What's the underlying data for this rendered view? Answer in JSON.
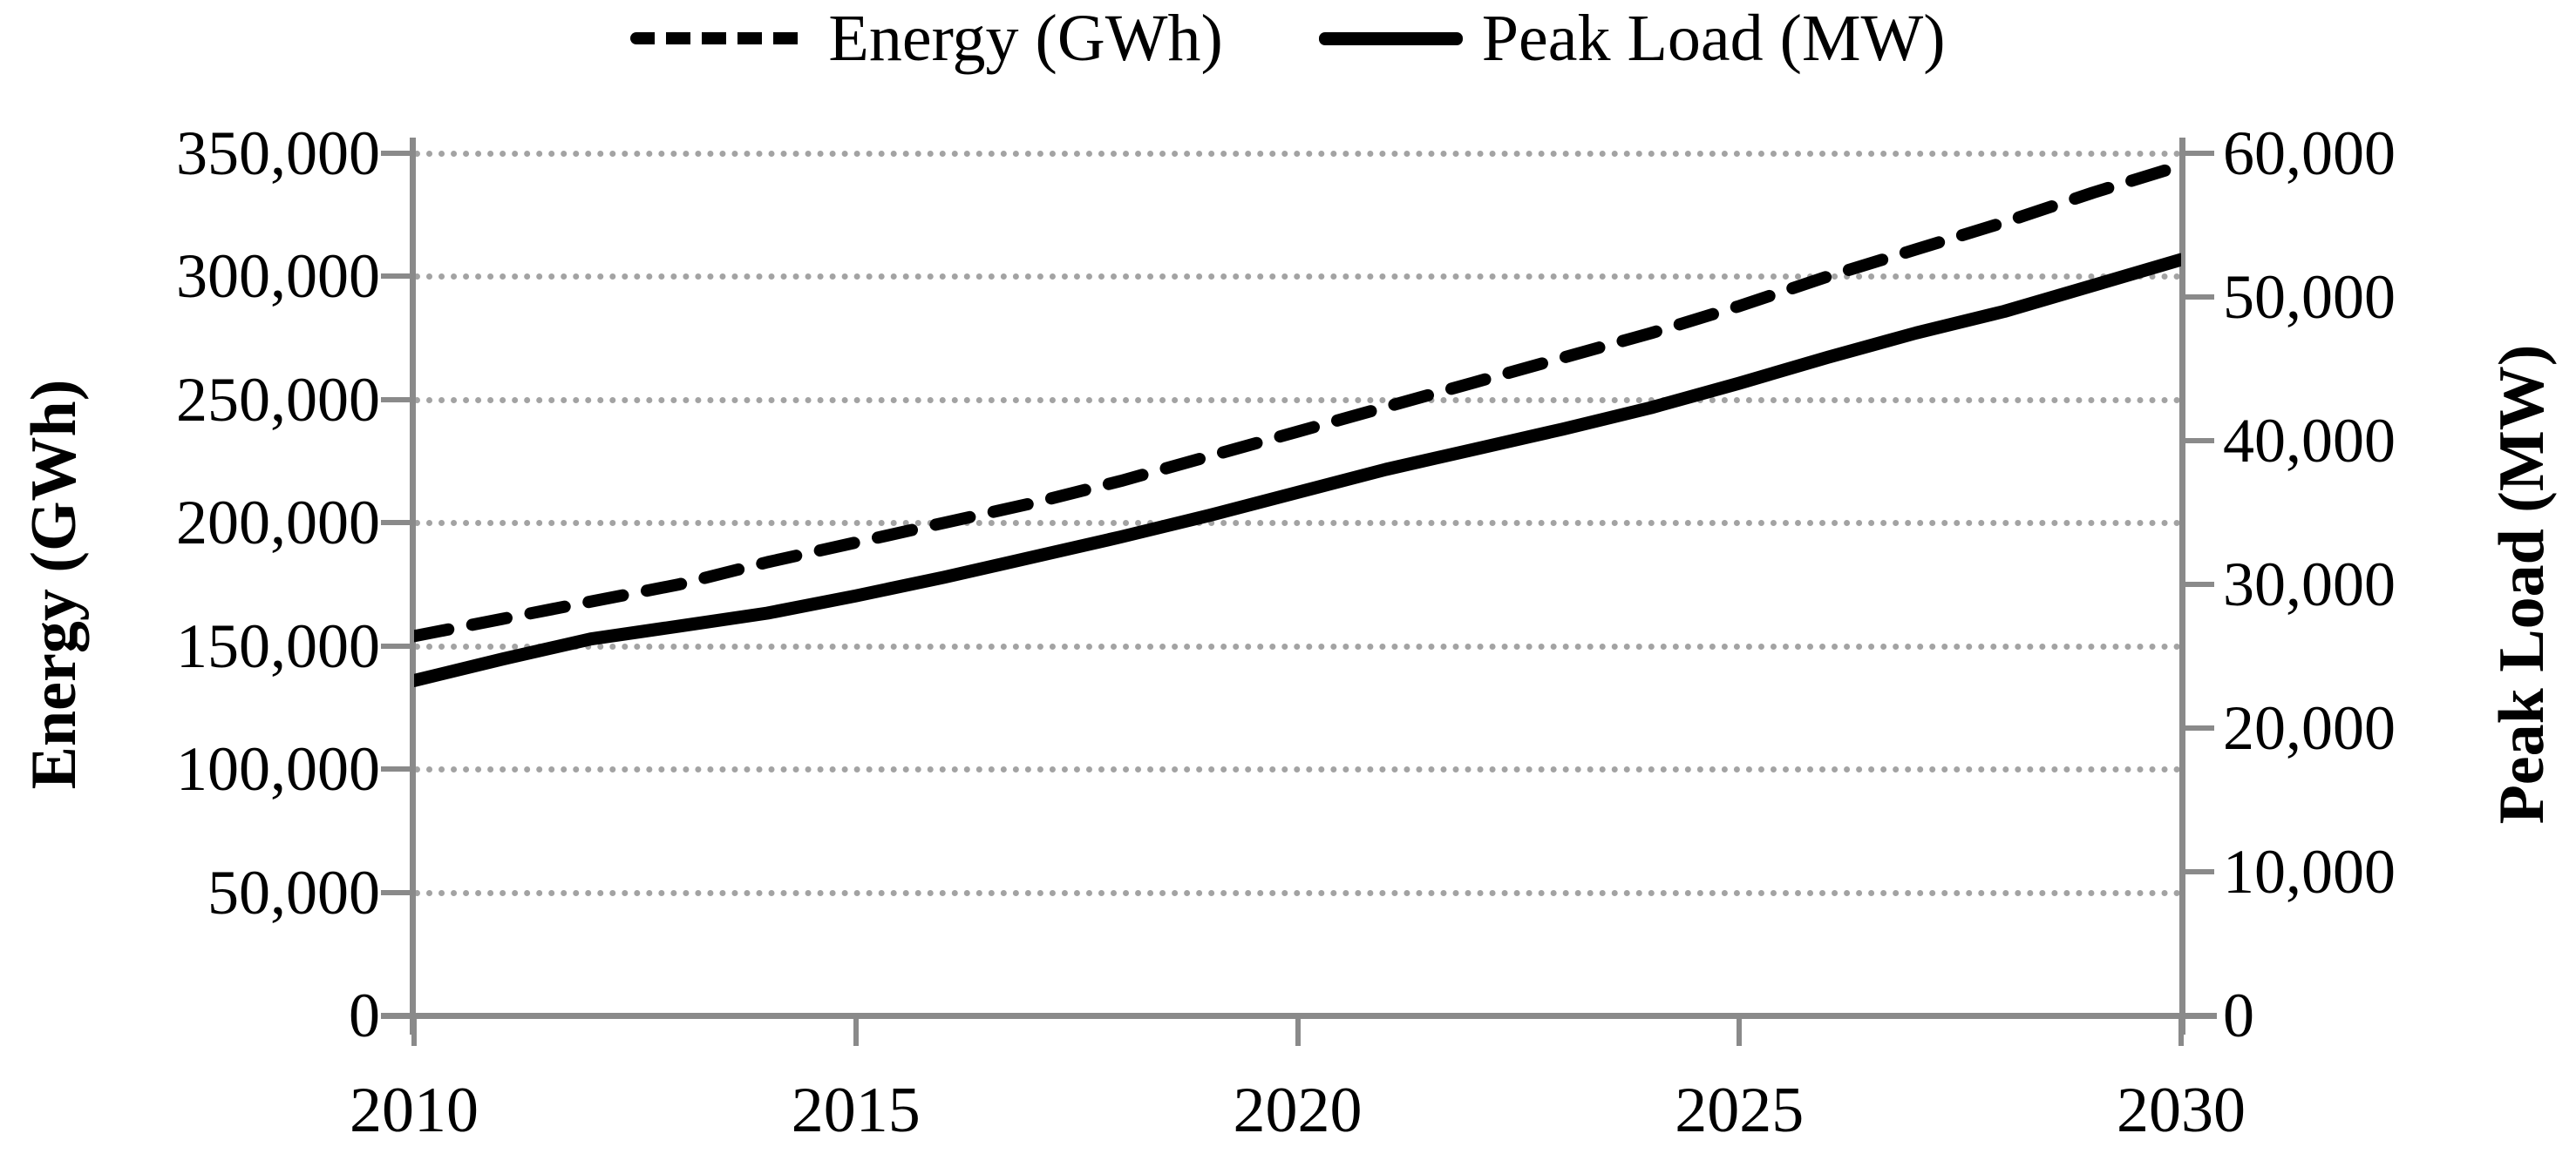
{
  "chart_data": {
    "type": "line",
    "title": "",
    "legend_position": "top",
    "grid": "horizontal dotted lines at left-axis majors",
    "x": [
      2010,
      2011,
      2012,
      2013,
      2014,
      2015,
      2016,
      2017,
      2018,
      2019,
      2020,
      2021,
      2022,
      2023,
      2024,
      2025,
      2026,
      2027,
      2028,
      2029,
      2030
    ],
    "series": [
      {
        "name": "Energy (GWh)",
        "axis": "left",
        "style": "dashed",
        "color": "#000000",
        "values": [
          154000,
          161000,
          168000,
          175000,
          184000,
          192000,
          200000,
          208000,
          217000,
          227000,
          237000,
          247000,
          257000,
          267000,
          277000,
          288000,
          300000,
          311000,
          322000,
          334000,
          345000
        ]
      },
      {
        "name": "Peak Load (MW)",
        "axis": "right",
        "style": "solid",
        "color": "#000000",
        "values": [
          23300,
          24800,
          26200,
          27100,
          28000,
          29200,
          30500,
          31900,
          33300,
          34800,
          36400,
          38000,
          39400,
          40800,
          42300,
          44000,
          45800,
          47500,
          49000,
          50800,
          52600
        ]
      }
    ],
    "axes": {
      "left": {
        "label": "Energy (GWh)",
        "min": 0,
        "max": 350000,
        "major_unit": 50000,
        "tick_labels_top_to_bottom": [
          "350,000",
          "300,000",
          "250,000",
          "200,000",
          "150,000",
          "100,000",
          "50,000",
          "0"
        ]
      },
      "right": {
        "label": "Peak Load (MW)",
        "min": 0,
        "max": 60000,
        "major_unit": 10000,
        "tick_labels_top_to_bottom": [
          "60,000",
          "50,000",
          "40,000",
          "30,000",
          "20,000",
          "10,000",
          "0"
        ]
      },
      "x": {
        "label": "",
        "min": 2010,
        "max": 2030,
        "tick_labels": [
          "2010",
          "2015",
          "2020",
          "2025",
          "2030"
        ]
      }
    }
  },
  "legend": {
    "items": [
      {
        "label": "Energy (GWh)",
        "swatch": "dashed-line"
      },
      {
        "label": "Peak Load (MW)",
        "swatch": "solid-line"
      }
    ]
  },
  "colors": {
    "line": "#000000",
    "axis": "#8a8a8a",
    "gridline": "#a3a3a3",
    "text": "#000000",
    "background": "#ffffff"
  }
}
